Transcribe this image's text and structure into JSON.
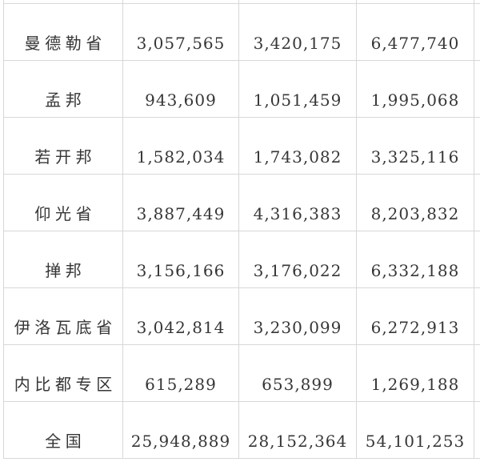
{
  "chart_data": {
    "type": "table",
    "description_visible_headers": "",
    "rows": [
      [
        "曼德勒省",
        "3,057,565",
        "3,420,175",
        "6,477,740"
      ],
      [
        "孟邦",
        "943,609",
        "1,051,459",
        "1,995,068"
      ],
      [
        "若开邦",
        "1,582,034",
        "1,743,082",
        "3,325,116"
      ],
      [
        "仰光省",
        "3,887,449",
        "4,316,383",
        "8,203,832"
      ],
      [
        "掸邦",
        "3,156,166",
        "3,176,022",
        "6,332,188"
      ],
      [
        "伊洛瓦底省",
        "3,042,814",
        "3,230,099",
        "6,272,913"
      ],
      [
        "内比都专区",
        "615,289",
        "653,899",
        "1,269,188"
      ],
      [
        "全国",
        "25,948,889",
        "28,152,364",
        "54,101,253"
      ]
    ]
  },
  "colors": {
    "background": "#ffffff",
    "border": "#d7d7d7",
    "text": "#363636"
  }
}
